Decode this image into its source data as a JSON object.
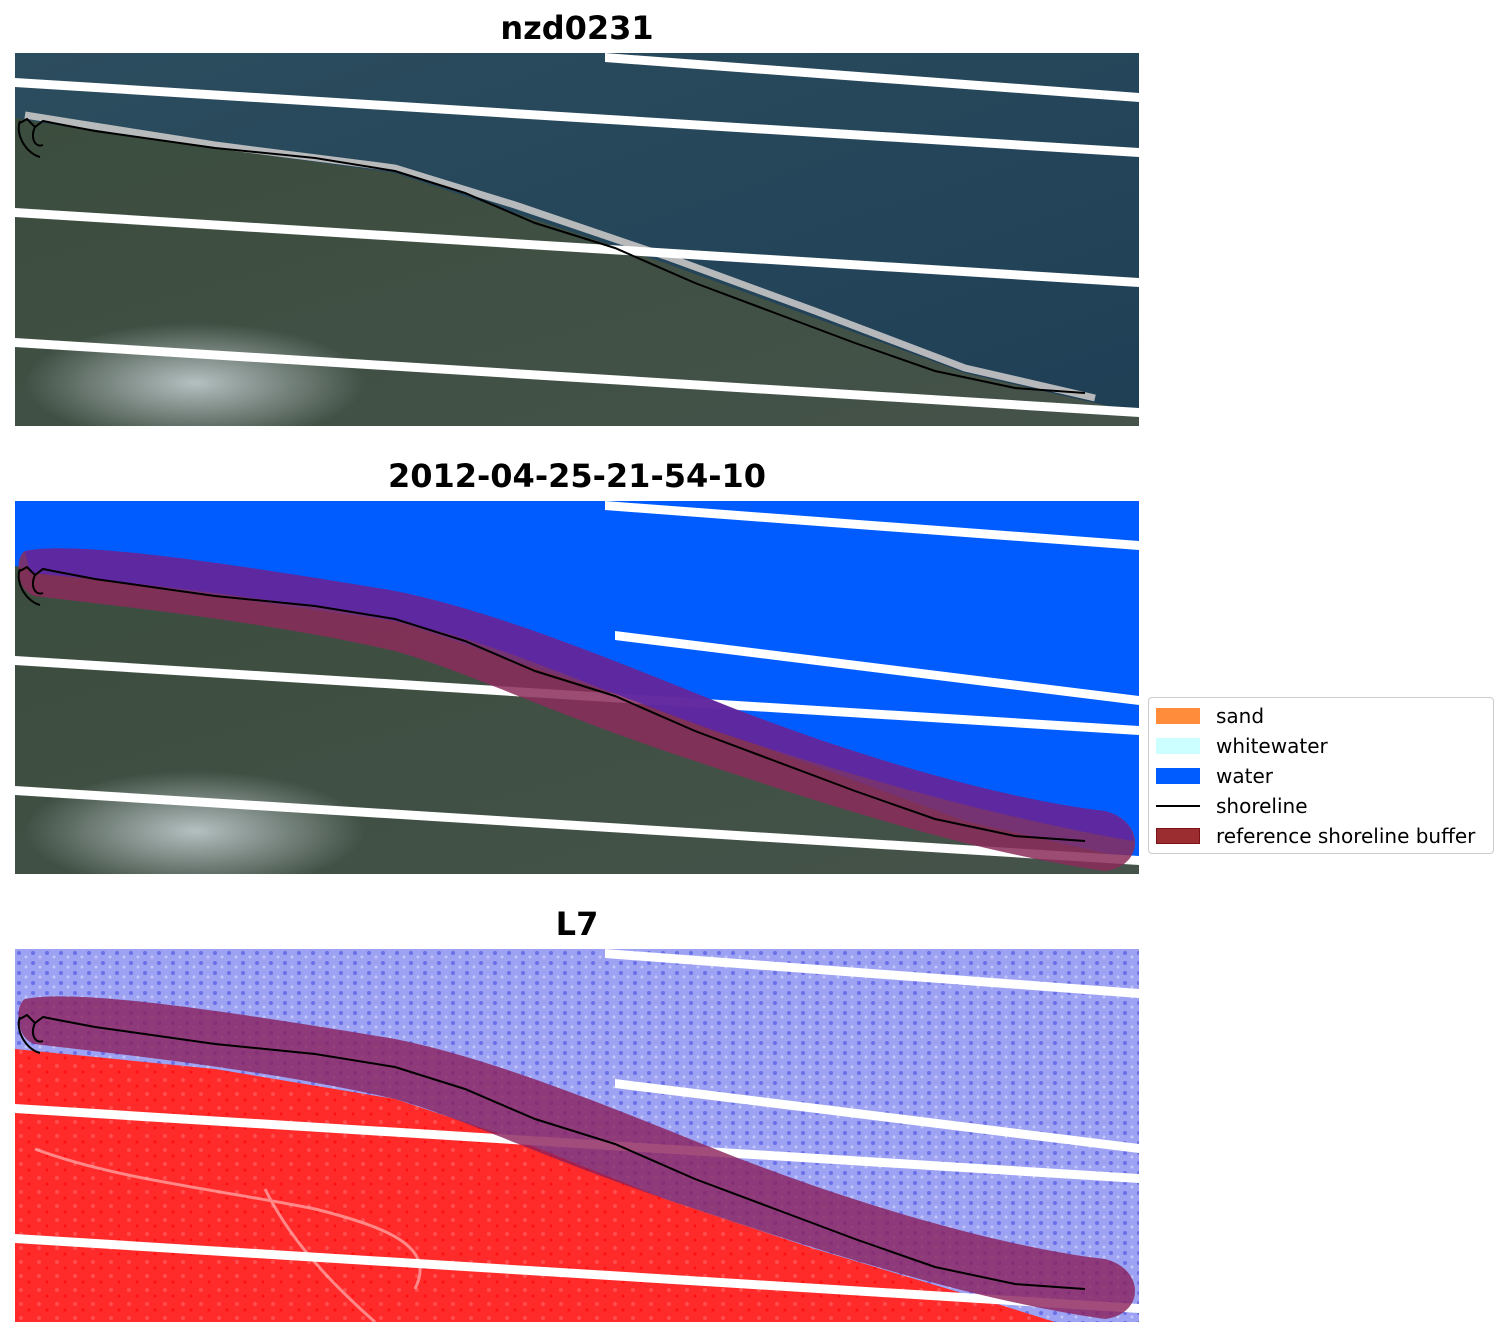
{
  "panels": [
    {
      "title": "nzd0231",
      "kind": "rgb"
    },
    {
      "title": "2012-04-25-21-54-10",
      "kind": "classified"
    },
    {
      "title": "L7",
      "kind": "index"
    }
  ],
  "legend": {
    "items": [
      {
        "label": "sand",
        "type": "patch",
        "color": "#ff8c3a"
      },
      {
        "label": "whitewater",
        "type": "patch",
        "color": "#ccffff"
      },
      {
        "label": "water",
        "type": "patch",
        "color": "#005cff"
      },
      {
        "label": "shoreline",
        "type": "line",
        "color": "#000000"
      },
      {
        "label": "reference shoreline buffer",
        "type": "patch",
        "color": "#9b2d30",
        "edge": "#7a1216"
      }
    ]
  }
}
